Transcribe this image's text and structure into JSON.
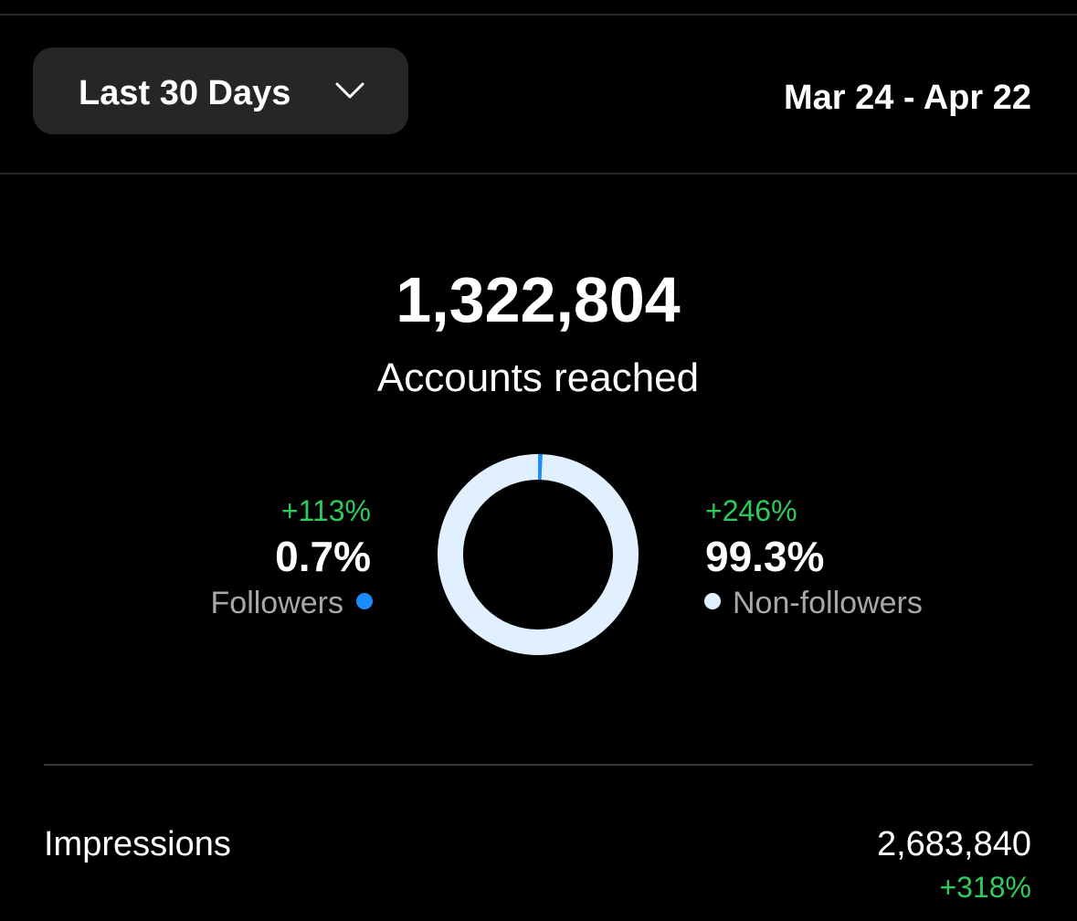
{
  "header": {
    "range_button": "Last 30 Days",
    "date_range": "Mar 24 - Apr 22"
  },
  "summary": {
    "total": "1,322,804",
    "label": "Accounts reached"
  },
  "audience": {
    "type": "donut",
    "segments": [
      {
        "name": "Followers",
        "value": 0.7,
        "value_label": "0.7%",
        "change": "+113%",
        "color": "#1a8cff"
      },
      {
        "name": "Non-followers",
        "value": 99.3,
        "value_label": "99.3%",
        "change": "+246%",
        "color": "#e1f0ff"
      }
    ]
  },
  "metrics": [
    {
      "name": "Impressions",
      "value": "2,683,840",
      "change": "+318%"
    }
  ]
}
